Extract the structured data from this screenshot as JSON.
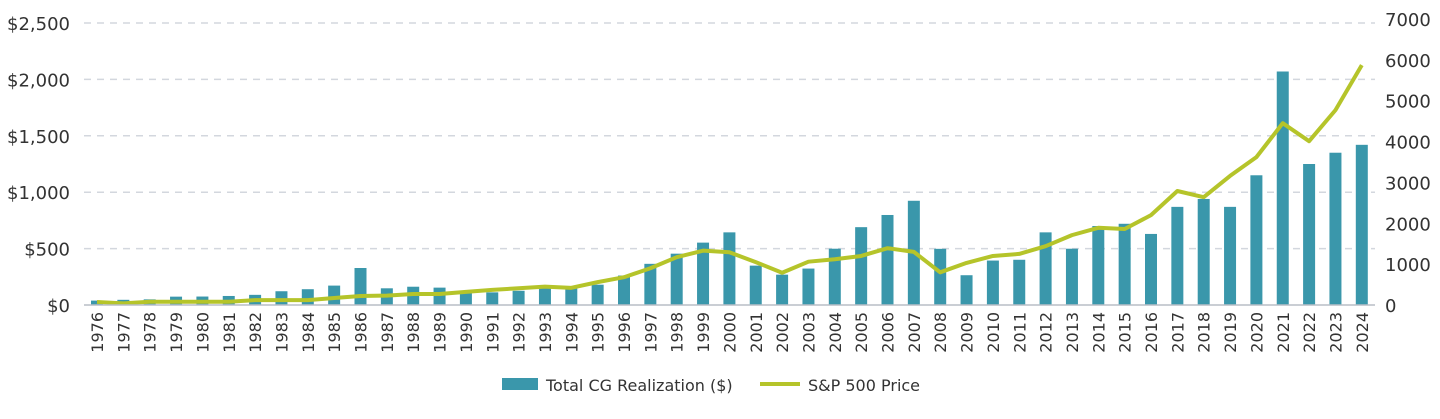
{
  "chart_data": {
    "type": "bar+line",
    "title": "",
    "categories": [
      "1976",
      "1977",
      "1978",
      "1979",
      "1980",
      "1981",
      "1982",
      "1983",
      "1984",
      "1985",
      "1986",
      "1987",
      "1988",
      "1989",
      "1990",
      "1991",
      "1992",
      "1993",
      "1994",
      "1995",
      "1996",
      "1997",
      "1998",
      "1999",
      "2000",
      "2001",
      "2002",
      "2003",
      "2004",
      "2005",
      "2006",
      "2007",
      "2008",
      "2009",
      "2010",
      "2011",
      "2012",
      "2013",
      "2014",
      "2015",
      "2016",
      "2017",
      "2018",
      "2019",
      "2020",
      "2021",
      "2022",
      "2023",
      "2024"
    ],
    "series": [
      {
        "name": "Total  CG Realization ($)",
        "type": "bar",
        "axis": "left",
        "color": "#3a97ab",
        "values": [
          39,
          46,
          50,
          74,
          75,
          80,
          90,
          122,
          140,
          172,
          328,
          148,
          162,
          154,
          124,
          112,
          126,
          152,
          153,
          180,
          261,
          365,
          455,
          553,
          644,
          349,
          269,
          323,
          499,
          690,
          798,
          924,
          498,
          264,
          394,
          401,
          644,
          499,
          700,
          720,
          630,
          870,
          940,
          870,
          1150,
          2070,
          1250,
          1350,
          1420
        ]
      },
      {
        "name": "S&P 500 Price",
        "type": "line",
        "axis": "right",
        "color": "#b5c42a",
        "values": [
          75,
          40,
          80,
          80,
          80,
          80,
          120,
          120,
          120,
          170,
          220,
          230,
          270,
          270,
          320,
          370,
          410,
          450,
          420,
          560,
          680,
          900,
          1170,
          1330,
          1290,
          1050,
          790,
          1060,
          1120,
          1200,
          1390,
          1300,
          800,
          1030,
          1200,
          1250,
          1440,
          1710,
          1890,
          1860,
          2200,
          2790,
          2640,
          3160,
          3620,
          4450,
          4010,
          4770,
          5870
        ]
      }
    ],
    "y_left": {
      "range": [
        0,
        2500
      ],
      "ticks": [
        "$0",
        "$500",
        "$1,000",
        "$1,500",
        "$2,000",
        "$2,500"
      ],
      "tick_values": [
        0,
        500,
        1000,
        1500,
        2000,
        2500
      ]
    },
    "y_right": {
      "range": [
        0,
        7000
      ],
      "ticks": [
        "0",
        "1000",
        "2000",
        "3000",
        "4000",
        "5000",
        "6000",
        "7000"
      ],
      "tick_values": [
        0,
        1000,
        2000,
        3000,
        4000,
        5000,
        6000,
        7000
      ]
    },
    "grid": "horizontal dashed",
    "legend": {
      "placement": "bottom",
      "items": [
        "Total  CG Realization ($)",
        "S&P 500 Price"
      ]
    }
  }
}
